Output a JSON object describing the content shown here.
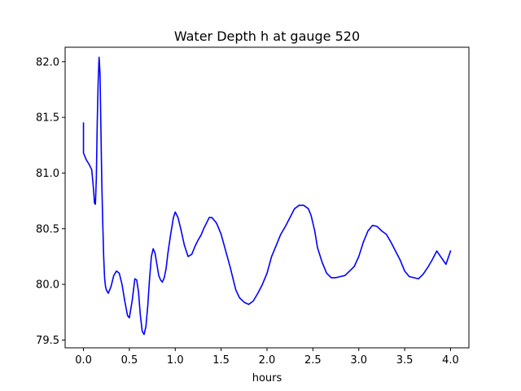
{
  "chart_data": {
    "type": "line",
    "title": "Water Depth h at gauge 520",
    "xlabel": "hours",
    "ylabel": "",
    "xlim": [
      -0.2,
      4.2
    ],
    "ylim": [
      79.43,
      82.13
    ],
    "xticks": [
      0.0,
      0.5,
      1.0,
      1.5,
      2.0,
      2.5,
      3.0,
      3.5,
      4.0
    ],
    "xtick_labels": [
      "0.0",
      "0.5",
      "1.0",
      "1.5",
      "2.0",
      "2.5",
      "3.0",
      "3.5",
      "4.0"
    ],
    "yticks": [
      79.5,
      80.0,
      80.5,
      81.0,
      81.5,
      82.0
    ],
    "ytick_labels": [
      "79.5",
      "80.0",
      "80.5",
      "81.0",
      "81.5",
      "82.0"
    ],
    "grid": false,
    "series": [
      {
        "color": "#0000ff",
        "x": [
          0.0,
          0.0,
          0.01,
          0.03,
          0.06,
          0.09,
          0.11,
          0.12,
          0.13,
          0.14,
          0.15,
          0.16,
          0.17,
          0.18,
          0.19,
          0.2,
          0.21,
          0.22,
          0.23,
          0.24,
          0.25,
          0.27,
          0.3,
          0.33,
          0.36,
          0.39,
          0.42,
          0.45,
          0.48,
          0.5,
          0.53,
          0.56,
          0.58,
          0.6,
          0.62,
          0.64,
          0.66,
          0.68,
          0.7,
          0.72,
          0.74,
          0.76,
          0.78,
          0.8,
          0.82,
          0.84,
          0.86,
          0.88,
          0.9,
          0.92,
          0.95,
          0.98,
          1.0,
          1.03,
          1.06,
          1.1,
          1.14,
          1.18,
          1.22,
          1.25,
          1.28,
          1.31,
          1.34,
          1.37,
          1.4,
          1.45,
          1.5,
          1.55,
          1.6,
          1.63,
          1.66,
          1.7,
          1.75,
          1.8,
          1.85,
          1.9,
          1.95,
          2.0,
          2.05,
          2.1,
          2.15,
          2.2,
          2.25,
          2.3,
          2.35,
          2.4,
          2.45,
          2.48,
          2.52,
          2.55,
          2.6,
          2.65,
          2.7,
          2.75,
          2.8,
          2.85,
          2.9,
          2.95,
          3.0,
          3.05,
          3.1,
          3.15,
          3.2,
          3.25,
          3.3,
          3.35,
          3.4,
          3.45,
          3.5,
          3.55,
          3.6,
          3.65,
          3.7,
          3.75,
          3.8,
          3.85,
          3.9,
          3.95,
          4.0
        ],
        "y": [
          81.45,
          81.18,
          81.16,
          81.12,
          81.08,
          81.03,
          80.85,
          80.73,
          80.72,
          80.95,
          81.45,
          81.82,
          82.04,
          81.9,
          81.4,
          80.9,
          80.55,
          80.25,
          80.06,
          79.98,
          79.95,
          79.92,
          79.98,
          80.08,
          80.12,
          80.1,
          80.0,
          79.85,
          79.72,
          79.7,
          79.85,
          80.05,
          80.04,
          79.93,
          79.72,
          79.58,
          79.55,
          79.62,
          79.8,
          80.05,
          80.25,
          80.32,
          80.28,
          80.18,
          80.08,
          80.04,
          80.02,
          80.06,
          80.14,
          80.28,
          80.45,
          80.6,
          80.65,
          80.6,
          80.5,
          80.35,
          80.25,
          80.27,
          80.35,
          80.4,
          80.44,
          80.5,
          80.55,
          80.6,
          80.6,
          80.55,
          80.45,
          80.3,
          80.15,
          80.05,
          79.95,
          79.88,
          79.84,
          79.82,
          79.85,
          79.92,
          80.0,
          80.1,
          80.25,
          80.35,
          80.45,
          80.52,
          80.6,
          80.68,
          80.71,
          80.71,
          80.68,
          80.62,
          80.48,
          80.33,
          80.2,
          80.1,
          80.06,
          80.06,
          80.07,
          80.08,
          80.12,
          80.16,
          80.25,
          80.38,
          80.48,
          80.53,
          80.52,
          80.48,
          80.45,
          80.38,
          80.3,
          80.22,
          80.12,
          80.07,
          80.06,
          80.05,
          80.09,
          80.15,
          80.22,
          80.3,
          80.24,
          80.18,
          80.3
        ]
      }
    ]
  }
}
